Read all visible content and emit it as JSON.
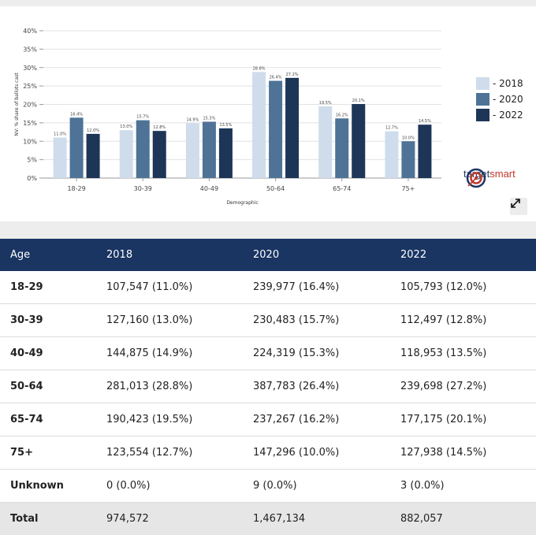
{
  "chart_data": {
    "type": "bar",
    "categories": [
      "18-29",
      "30-39",
      "40-49",
      "50-64",
      "65-74",
      "75+"
    ],
    "series": [
      {
        "name": "2018",
        "values": [
          11.0,
          13.0,
          14.9,
          28.8,
          19.5,
          12.7
        ],
        "labels": [
          "11.0%",
          "13.0%",
          "14.9%",
          "28.8%",
          "19.5%",
          "12.7%"
        ]
      },
      {
        "name": "2020",
        "values": [
          16.4,
          15.7,
          15.3,
          26.4,
          16.2,
          10.0
        ],
        "labels": [
          "16.4%",
          "15.7%",
          "15.3%",
          "26.4%",
          "16.2%",
          "10.0%"
        ]
      },
      {
        "name": "2022",
        "values": [
          12.0,
          12.8,
          13.5,
          27.2,
          20.1,
          14.5
        ],
        "labels": [
          "12.0%",
          "12.8%",
          "13.5%",
          "27.2%",
          "20.1%",
          "14.5%"
        ]
      }
    ],
    "colors": [
      "#cfdcec",
      "#4e7397",
      "#1d3557"
    ],
    "xlabel": "Demographic",
    "ylabel": "NV: % share of ballots cast",
    "ylim": [
      0,
      40
    ],
    "yticks": [
      "0%",
      "5%",
      "10%",
      "15%",
      "20%",
      "25%",
      "30%",
      "35%",
      "40%"
    ],
    "legend": [
      "- 2018",
      "- 2020",
      "- 2022"
    ],
    "legend_position": "right"
  },
  "logo": {
    "text_main": "target",
    "text_accent": "smart"
  },
  "table": {
    "headers": [
      "Age",
      "2018",
      "2020",
      "2022"
    ],
    "rows": [
      [
        "18-29",
        "107,547 (11.0%)",
        "239,977 (16.4%)",
        "105,793 (12.0%)"
      ],
      [
        "30-39",
        "127,160 (13.0%)",
        "230,483 (15.7%)",
        "112,497 (12.8%)"
      ],
      [
        "40-49",
        "144,875 (14.9%)",
        "224,319 (15.3%)",
        "118,953 (13.5%)"
      ],
      [
        "50-64",
        "281,013 (28.8%)",
        "387,783 (26.4%)",
        "239,698 (27.2%)"
      ],
      [
        "65-74",
        "190,423 (19.5%)",
        "237,267 (16.2%)",
        "177,175 (20.1%)"
      ],
      [
        "75+",
        "123,554 (12.7%)",
        "147,296 (10.0%)",
        "127,938 (14.5%)"
      ],
      [
        "Unknown",
        "0 (0.0%)",
        "9 (0.0%)",
        "3 (0.0%)"
      ]
    ],
    "total": [
      "Total",
      "974,572",
      "1,467,134",
      "882,057"
    ]
  }
}
